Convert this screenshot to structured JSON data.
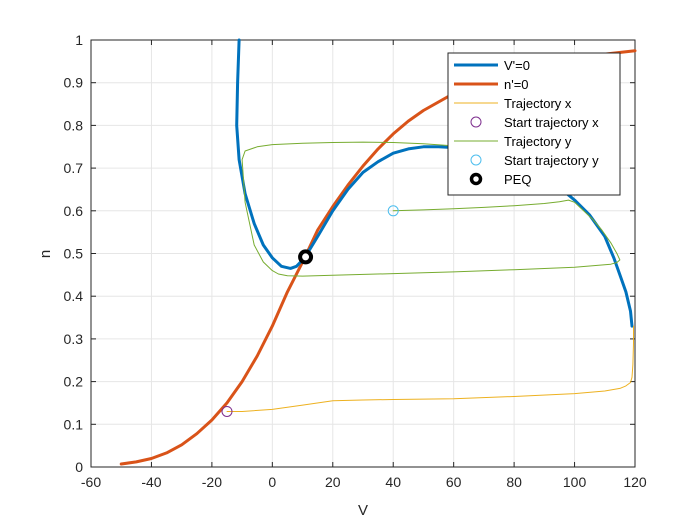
{
  "chart_data": {
    "type": "line",
    "title": "",
    "xlabel": "V",
    "ylabel": "n",
    "xlim": [
      -60,
      120
    ],
    "ylim": [
      0,
      1
    ],
    "xticks": [
      -60,
      -40,
      -20,
      0,
      20,
      40,
      60,
      80,
      100,
      120
    ],
    "yticks": [
      0,
      0.1,
      0.2,
      0.3,
      0.4,
      0.5,
      0.6,
      0.7,
      0.8,
      0.9,
      1
    ],
    "xtick_labels": [
      "-60",
      "-40",
      "-20",
      "0",
      "20",
      "40",
      "60",
      "80",
      "100",
      "120"
    ],
    "ytick_labels": [
      "0",
      "0.1",
      "0.2",
      "0.3",
      "0.4",
      "0.5",
      "0.6",
      "0.7",
      "0.8",
      "0.9",
      "1"
    ],
    "grid": true,
    "legend_position": "top-right",
    "colors": {
      "v_nullcline": "#0072BD",
      "n_nullcline": "#D95319",
      "trajectory_x": "#EDB120",
      "start_x": "#7E2F8E",
      "trajectory_y": "#77AC30",
      "start_y": "#4DBEEE",
      "peq": "#000000",
      "grid": "#e6e6e6",
      "axis": "#262626"
    },
    "series": [
      {
        "name": "V'=0",
        "kind": "line",
        "x": [
          -11,
          -11.5,
          -11.8,
          -11,
          -9,
          -6,
          -3,
          0,
          3,
          6,
          8,
          10,
          12,
          15,
          20,
          25,
          30,
          35,
          40,
          45,
          50,
          55,
          60,
          65,
          70,
          75,
          80,
          85,
          90,
          95,
          100,
          105,
          110,
          113,
          115,
          117,
          118.5,
          119
        ],
        "y": [
          1.0,
          0.9,
          0.8,
          0.72,
          0.64,
          0.57,
          0.52,
          0.49,
          0.47,
          0.465,
          0.47,
          0.485,
          0.505,
          0.54,
          0.6,
          0.65,
          0.69,
          0.715,
          0.735,
          0.745,
          0.75,
          0.75,
          0.748,
          0.745,
          0.74,
          0.73,
          0.715,
          0.7,
          0.68,
          0.655,
          0.625,
          0.59,
          0.54,
          0.49,
          0.45,
          0.41,
          0.365,
          0.33
        ]
      },
      {
        "name": "n'=0",
        "kind": "line",
        "x": [
          -50,
          -45,
          -40,
          -35,
          -30,
          -25,
          -20,
          -15,
          -10,
          -5,
          0,
          5,
          10,
          15,
          20,
          25,
          30,
          35,
          40,
          45,
          50,
          60,
          70,
          80,
          90,
          100,
          110,
          120
        ],
        "y": [
          0.007,
          0.012,
          0.02,
          0.033,
          0.052,
          0.078,
          0.11,
          0.15,
          0.2,
          0.26,
          0.33,
          0.41,
          0.48,
          0.555,
          0.61,
          0.66,
          0.705,
          0.745,
          0.78,
          0.81,
          0.835,
          0.875,
          0.905,
          0.927,
          0.944,
          0.957,
          0.967,
          0.975
        ]
      },
      {
        "name": "Trajectory x",
        "kind": "line",
        "x": [
          -15,
          -10,
          0,
          10,
          20,
          30,
          40,
          60,
          80,
          100,
          110,
          115,
          117,
          118.5,
          119,
          119.3,
          119.5,
          119.5
        ],
        "y": [
          0.13,
          0.13,
          0.135,
          0.145,
          0.155,
          0.157,
          0.158,
          0.16,
          0.165,
          0.172,
          0.178,
          0.184,
          0.19,
          0.198,
          0.21,
          0.24,
          0.29,
          0.33
        ]
      },
      {
        "name": "Start trajectory x",
        "kind": "marker",
        "marker": "circle-open",
        "x": [
          -15
        ],
        "y": [
          0.13
        ]
      },
      {
        "name": "Trajectory y",
        "kind": "line",
        "x": [
          40,
          50,
          60,
          70,
          80,
          90,
          95,
          98,
          100,
          103,
          106,
          109,
          112,
          114,
          115,
          114,
          112,
          100,
          80,
          60,
          40,
          20,
          10,
          5,
          2,
          0,
          -3,
          -6,
          -9,
          -10,
          -9,
          -5,
          0,
          10,
          20,
          30,
          40,
          50,
          60,
          70,
          80,
          90,
          95,
          98
        ],
        "y": [
          0.6,
          0.602,
          0.605,
          0.608,
          0.612,
          0.617,
          0.621,
          0.625,
          0.62,
          0.6,
          0.58,
          0.555,
          0.525,
          0.5,
          0.485,
          0.479,
          0.475,
          0.468,
          0.462,
          0.457,
          0.453,
          0.449,
          0.447,
          0.448,
          0.452,
          0.46,
          0.48,
          0.52,
          0.62,
          0.72,
          0.74,
          0.75,
          0.755,
          0.758,
          0.76,
          0.761,
          0.76,
          0.757,
          0.752,
          0.745,
          0.732,
          0.71,
          0.69,
          0.675
        ]
      },
      {
        "name": "Start trajectory y",
        "kind": "marker",
        "marker": "circle-open",
        "x": [
          40
        ],
        "y": [
          0.6
        ]
      },
      {
        "name": "PEQ",
        "kind": "marker",
        "marker": "circle-bold",
        "x": [
          11
        ],
        "y": [
          0.492
        ]
      }
    ]
  }
}
